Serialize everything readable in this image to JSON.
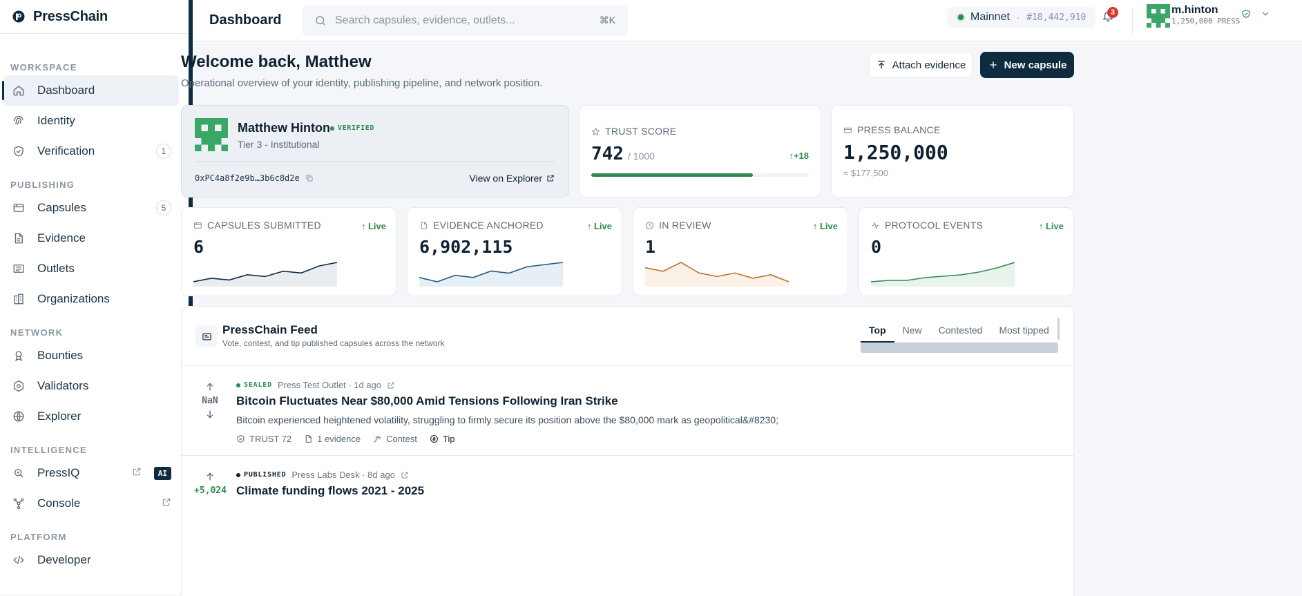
{
  "brand": {
    "name": "PressChain"
  },
  "sidebar": {
    "sections": [
      {
        "heading": "WORKSPACE",
        "items": [
          {
            "label": "Dashboard",
            "icon": "home-icon",
            "active": true
          },
          {
            "label": "Identity",
            "icon": "fingerprint-icon"
          },
          {
            "label": "Verification",
            "icon": "shield-check-icon",
            "count": "1"
          }
        ]
      },
      {
        "heading": "PUBLISHING",
        "items": [
          {
            "label": "Capsules",
            "icon": "capsule-icon",
            "count": "5"
          },
          {
            "label": "Evidence",
            "icon": "document-icon"
          },
          {
            "label": "Outlets",
            "icon": "newspaper-icon"
          },
          {
            "label": "Organizations",
            "icon": "building-icon"
          }
        ]
      },
      {
        "heading": "NETWORK",
        "items": [
          {
            "label": "Bounties",
            "icon": "award-icon"
          },
          {
            "label": "Validators",
            "icon": "hexagon-icon"
          },
          {
            "label": "Explorer",
            "icon": "globe-icon"
          }
        ]
      },
      {
        "heading": "INTELLIGENCE",
        "items": [
          {
            "label": "PressIQ",
            "icon": "search-zoom-icon",
            "badge": "AI",
            "external": true
          },
          {
            "label": "Console",
            "icon": "network-icon",
            "external": true
          }
        ]
      },
      {
        "heading": "PLATFORM",
        "items": [
          {
            "label": "Developer",
            "icon": "code-icon"
          }
        ]
      }
    ]
  },
  "topbar": {
    "title": "Dashboard",
    "search_placeholder": "Search capsules, evidence, outlets...",
    "search_shortcut": "⌘K",
    "network": "Mainnet",
    "network_separator": "·",
    "block": "#18,442,910",
    "notifications": "3",
    "user": {
      "name": "m.hinton",
      "balance": "1,250,000 PRESS"
    }
  },
  "welcome": {
    "title": "Welcome back, Matthew",
    "subtitle": "Operational overview of your identity, publishing pipeline, and network position.",
    "attach_label": "Attach evidence",
    "new_label": "New capsule"
  },
  "identity": {
    "name": "Matthew Hinton",
    "status": "VERIFIED",
    "tier": "Tier 3 - Institutional",
    "address": "0xPC4a8f2e9b…3b6c8d2e",
    "explorer_label": "View on Explorer"
  },
  "trust": {
    "label": "TRUST SCORE",
    "value": "742",
    "max": "/ 1000",
    "delta": "↑+18",
    "fraction": 0.742
  },
  "balance": {
    "label": "PRESS BALANCE",
    "value": "1,250,000",
    "usd": "≈ $177,500"
  },
  "stats": [
    {
      "label": "CAPSULES SUBMITTED",
      "value": "6",
      "live": "↑ Live",
      "color": "#0e2b40",
      "fill": "#e9edf1",
      "spark": [
        2,
        4,
        3,
        6,
        5,
        8,
        7,
        11,
        13
      ]
    },
    {
      "label": "EVIDENCE ANCHORED",
      "value": "6,902,115",
      "live": "↑ Live",
      "color": "#1f5a8a",
      "fill": "#e6eef6",
      "spark": [
        3,
        1,
        4,
        3,
        6,
        5,
        8,
        9,
        10
      ]
    },
    {
      "label": "IN REVIEW",
      "value": "1",
      "live": "↑ Live",
      "color": "#b8732a",
      "fill": "#fbf1e6",
      "spark": [
        8,
        6,
        11,
        5,
        3,
        5,
        2,
        4,
        0
      ]
    },
    {
      "label": "PROTOCOL EVENTS",
      "value": "0",
      "live": "↑ Live",
      "color": "#2f8a4f",
      "fill": "#e8f3ec",
      "spark": [
        1,
        2,
        2,
        4,
        5,
        6,
        8,
        11,
        15
      ]
    }
  ],
  "feed": {
    "title": "PressChain Feed",
    "subtitle": "Vote, contest, and tip published capsules across the network",
    "tabs": [
      "Top",
      "New",
      "Contested",
      "Most tipped"
    ],
    "posts": [
      {
        "votes": "NaN",
        "status": "SEALED",
        "outlet": "Press Test Outlet · 1d ago",
        "title": "Bitcoin Fluctuates Near $80,000 Amid Tensions Following Iran Strike",
        "excerpt": "Bitcoin experienced heightened volatility, struggling to firmly secure its position above the $80,000 mark as geopolitical&#8230;",
        "trust": "TRUST 72",
        "evidence": "1 evidence",
        "contest": "Contest",
        "tip": "Tip"
      },
      {
        "votes": "+5,024",
        "status": "PUBLISHED",
        "outlet": "Press Labs Desk · 8d ago",
        "title": "Climate funding flows 2021 - 2025"
      }
    ]
  }
}
